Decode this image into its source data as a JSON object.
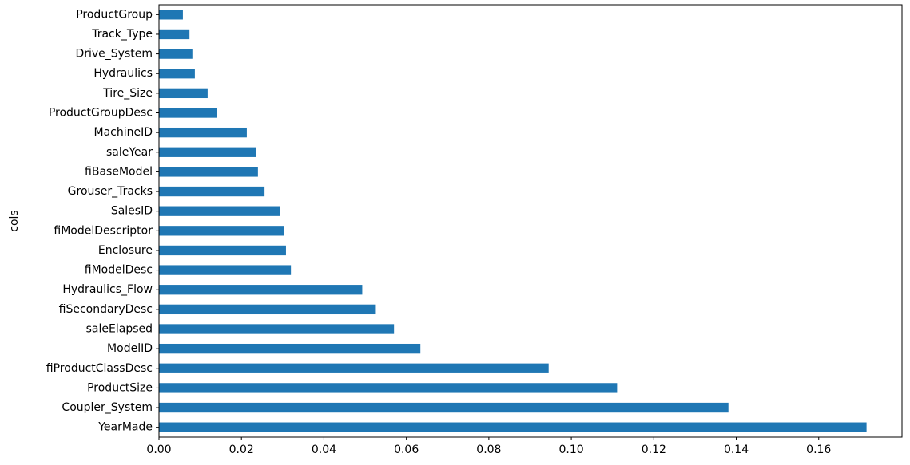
{
  "chart_data": {
    "type": "barh",
    "y_label": "cols",
    "categories": [
      "ProductGroup",
      "Track_Type",
      "Drive_System",
      "Hydraulics",
      "Tire_Size",
      "ProductGroupDesc",
      "MachineID",
      "saleYear",
      "fiBaseModel",
      "Grouser_Tracks",
      "SalesID",
      "fiModelDescriptor",
      "Enclosure",
      "fiModelDesc",
      "Hydraulics_Flow",
      "fiSecondaryDesc",
      "saleElapsed",
      "ModelID",
      "fiProductClassDesc",
      "ProductSize",
      "Coupler_System",
      "YearMade"
    ],
    "values": [
      0.0058,
      0.0074,
      0.0081,
      0.0087,
      0.0118,
      0.014,
      0.0213,
      0.0235,
      0.024,
      0.0256,
      0.0293,
      0.0303,
      0.0308,
      0.032,
      0.0493,
      0.0524,
      0.057,
      0.0634,
      0.0945,
      0.1111,
      0.1381,
      0.1716
    ],
    "color": "#1f77b4",
    "xlim": [
      0,
      0.1802
    ],
    "xticks": [
      {
        "value": 0,
        "label": "0.00"
      },
      {
        "value": 0.02,
        "label": "0.02"
      },
      {
        "value": 0.04,
        "label": "0.04"
      },
      {
        "value": 0.06,
        "label": "0.06"
      },
      {
        "value": 0.08,
        "label": "0.08"
      },
      {
        "value": 0.1,
        "label": "0.10"
      },
      {
        "value": 0.12,
        "label": "0.12"
      },
      {
        "value": 0.14,
        "label": "0.14"
      },
      {
        "value": 0.16,
        "label": "0.16"
      }
    ]
  }
}
